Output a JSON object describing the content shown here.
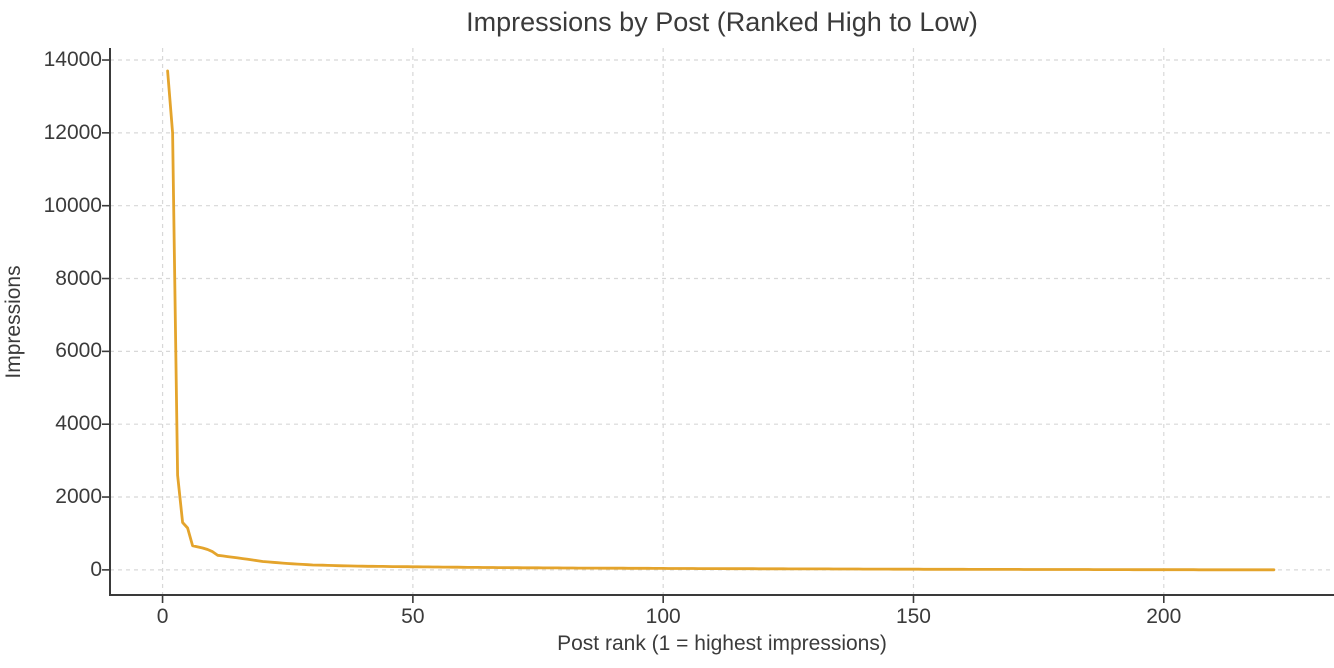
{
  "chart_data": {
    "type": "line",
    "title": "Impressions by Post (Ranked High to Low)",
    "xlabel": "Post rank (1 = highest impressions)",
    "ylabel": "Impressions",
    "x_start_rank": 1,
    "xticks": [
      0,
      50,
      100,
      150,
      200
    ],
    "yticks": [
      0,
      2000,
      4000,
      6000,
      8000,
      10000,
      12000,
      14000
    ],
    "xlim": [
      -10.5,
      234
    ],
    "ylim": [
      -690,
      14330
    ],
    "grid": "dashed-both",
    "legend": "none",
    "spines": [
      "left",
      "bottom"
    ],
    "series": [
      {
        "name": "Impressions",
        "values": [
          13700,
          12000,
          2600,
          1300,
          1150,
          660,
          630,
          600,
          560,
          500,
          400,
          385,
          365,
          345,
          330,
          310,
          290,
          270,
          250,
          230,
          219,
          208,
          197,
          186,
          175,
          167,
          159,
          151,
          143,
          135,
          131,
          127,
          123,
          119,
          115,
          112,
          109,
          106,
          103,
          100,
          98,
          97,
          95,
          94,
          92,
          91,
          89,
          88,
          86,
          85,
          84,
          82,
          81,
          79,
          78,
          76,
          75,
          73,
          72,
          70,
          69,
          68,
          67,
          66,
          65,
          64,
          63,
          62,
          61,
          60,
          59,
          58,
          58,
          57,
          56,
          55,
          54,
          54,
          53,
          52,
          51,
          51,
          50,
          50,
          49,
          48,
          48,
          47,
          47,
          46,
          45,
          45,
          44,
          44,
          43,
          42,
          42,
          41,
          41,
          40,
          39,
          39,
          38,
          38,
          37,
          37,
          36,
          36,
          35,
          35,
          34,
          34,
          33,
          33,
          32,
          32,
          31,
          31,
          30,
          30,
          30,
          29,
          29,
          29,
          28,
          28,
          28,
          27,
          27,
          27,
          26,
          26,
          26,
          25,
          25,
          24,
          24,
          23,
          23,
          22,
          22,
          21,
          21,
          20,
          20,
          19,
          19,
          18,
          18,
          18,
          18,
          17,
          17,
          17,
          16,
          16,
          16,
          15,
          15,
          15,
          14,
          14,
          14,
          14,
          14,
          13,
          13,
          13,
          12,
          12,
          12,
          11,
          11,
          11,
          10,
          10,
          10,
          10,
          10,
          10,
          10,
          9,
          9,
          9,
          9,
          8,
          8,
          8,
          8,
          7,
          7,
          7,
          7,
          6,
          6,
          6,
          6,
          5,
          5,
          5,
          5,
          5,
          4,
          4,
          4,
          4,
          3,
          3,
          3,
          3,
          3,
          3,
          2,
          2,
          2,
          2,
          2,
          1,
          1,
          1,
          1,
          1
        ]
      }
    ],
    "colors": {
      "line": "#E4A42C",
      "grid": "#d8d8d8",
      "axis": "#3a3a3a",
      "text": "#3b3b3b",
      "background": "#ffffff"
    }
  }
}
